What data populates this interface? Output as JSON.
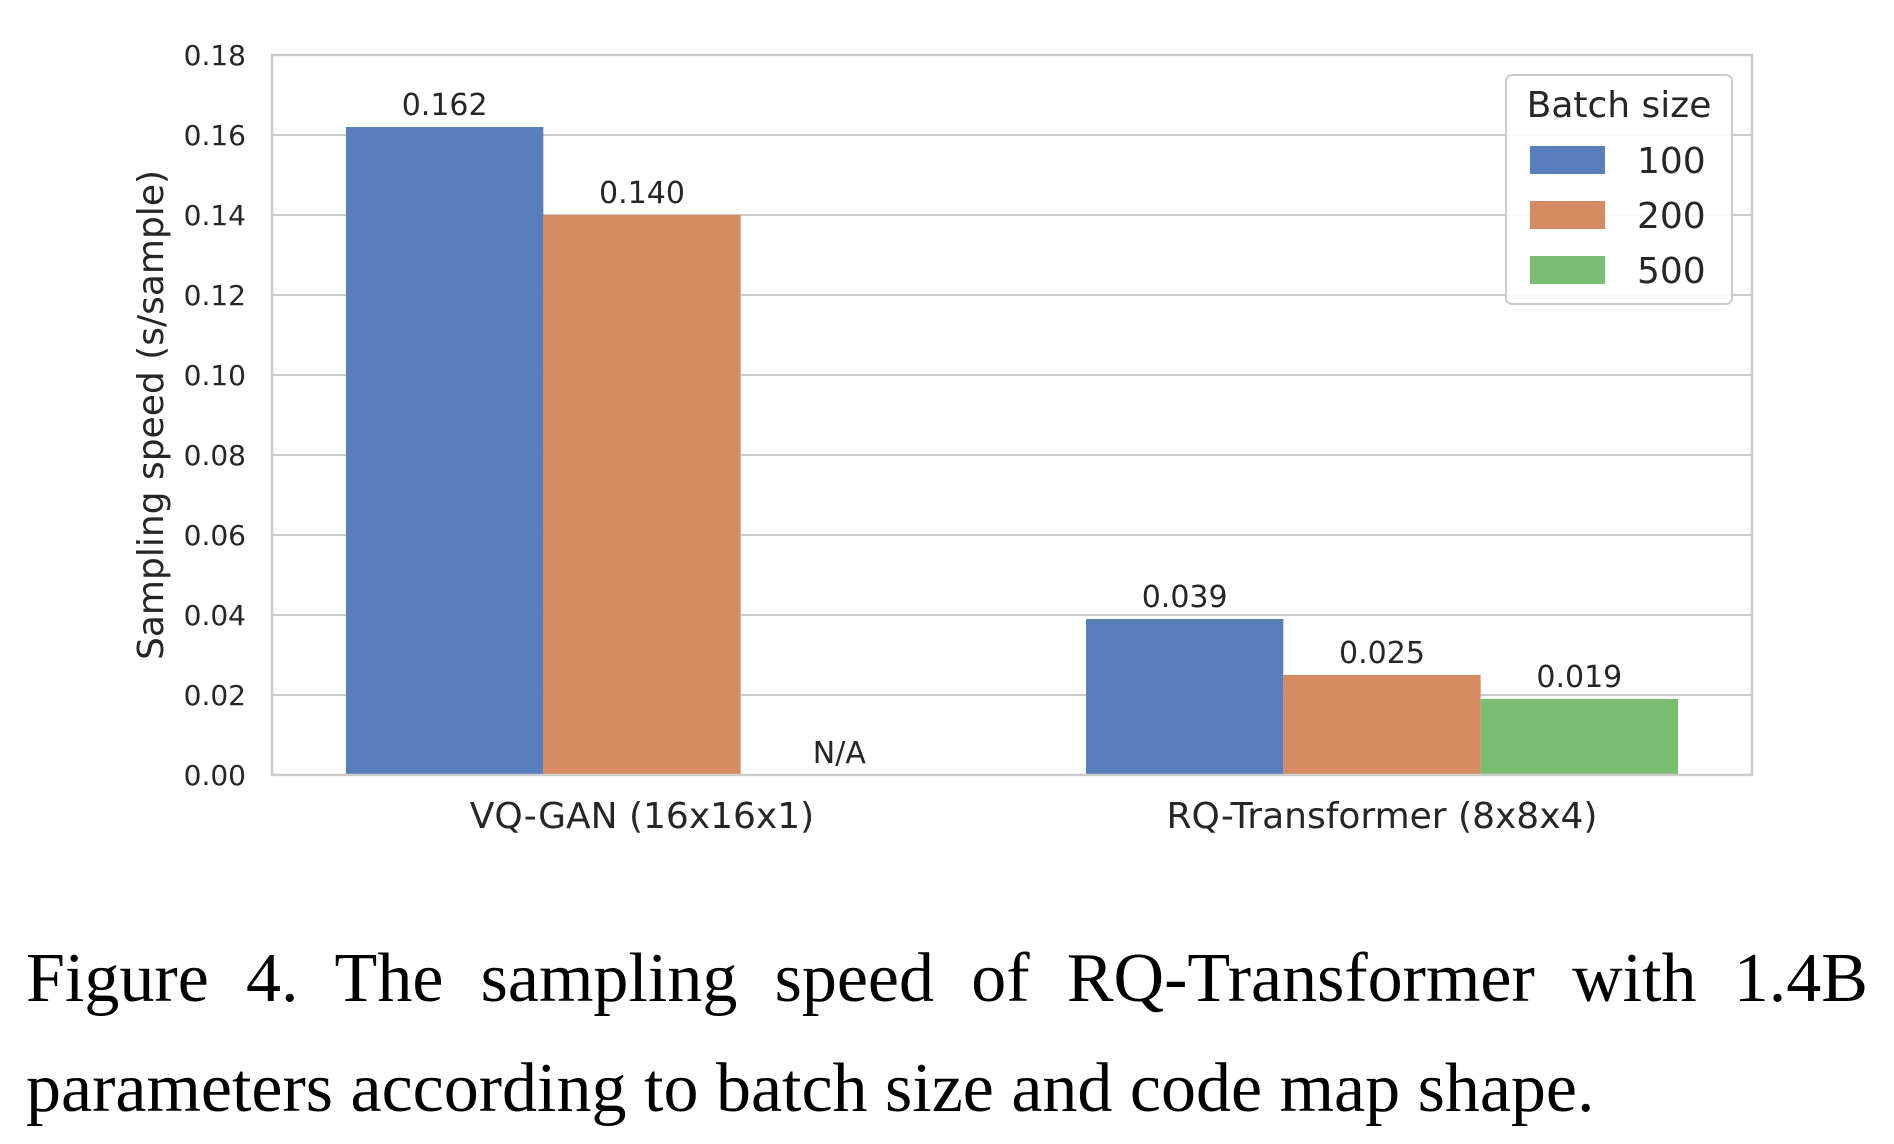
{
  "caption": "Figure 4.  The sampling speed of RQ-Transformer with 1.4B parameters according to batch size and code map shape.",
  "chart_data": {
    "type": "bar",
    "title": "",
    "xlabel": "",
    "ylabel": "Sampling speed (s/sample)",
    "ylim": [
      0,
      0.18
    ],
    "yticks": [
      "0.00",
      "0.02",
      "0.04",
      "0.06",
      "0.08",
      "0.10",
      "0.12",
      "0.14",
      "0.16",
      "0.18"
    ],
    "grid": true,
    "legend": {
      "title": "Batch size",
      "placement": "top-right"
    },
    "categories": [
      "VQ-GAN (16x16x1)",
      "RQ-Transformer (8x8x4)"
    ],
    "series": [
      {
        "name": "100",
        "color": "#5a7dbb",
        "values": [
          0.162,
          0.039
        ],
        "labels": [
          "0.162",
          "0.039"
        ]
      },
      {
        "name": "200",
        "color": "#d68a61",
        "values": [
          0.14,
          0.025
        ],
        "labels": [
          "0.140",
          "0.025"
        ]
      },
      {
        "name": "500",
        "color": "#78bf72",
        "values": [
          null,
          0.019
        ],
        "labels": [
          "N/A",
          "0.019"
        ]
      }
    ]
  }
}
